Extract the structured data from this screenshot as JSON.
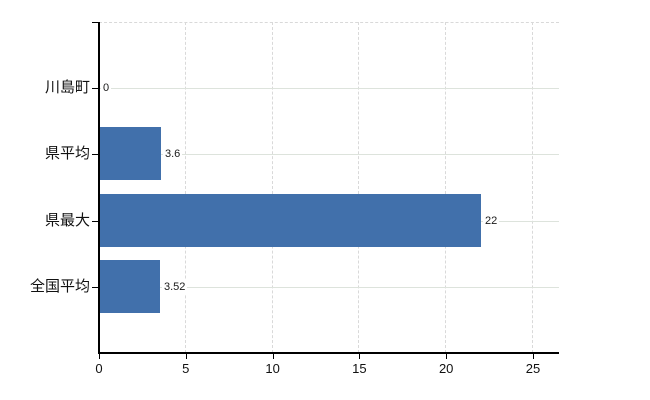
{
  "chart_data": {
    "type": "bar",
    "orientation": "horizontal",
    "title": "",
    "xlabel": "",
    "ylabel": "",
    "categories": [
      "川島町",
      "県平均",
      "県最大",
      "全国平均"
    ],
    "values": [
      0,
      3.6,
      22,
      3.52
    ],
    "value_labels": [
      "0",
      "3.6",
      "22",
      "3.52"
    ],
    "x_ticks": [
      0,
      5,
      10,
      15,
      20,
      25
    ],
    "xlim": [
      0,
      26.5
    ],
    "legend_position": "none",
    "grid": {
      "vertical": "dashed",
      "horizontal": "solid",
      "top_border": "dashed"
    },
    "colors": {
      "bar": "#4170ab",
      "h_gridline": "#dde3dc",
      "v_gridline": "#d9d9d9",
      "axis": "#000000",
      "text": "#1a1a1a",
      "background": "#ffffff"
    }
  }
}
